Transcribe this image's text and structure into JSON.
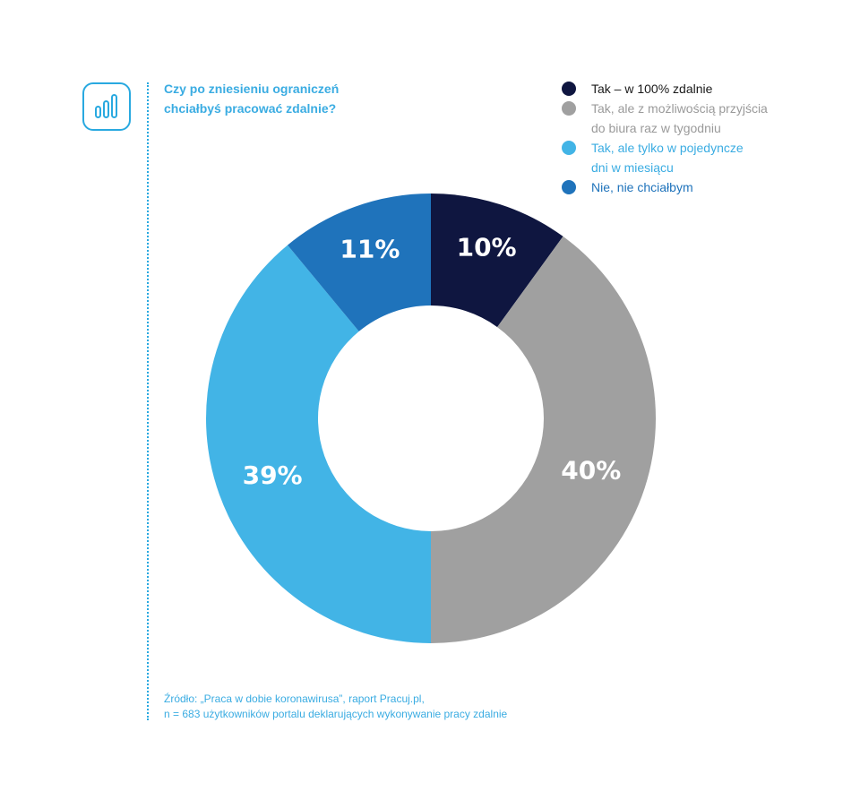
{
  "header": {
    "title_line1": "Czy po zniesieniu ograniczeń",
    "title_line2": "chciałbyś pracować zdalnie?",
    "icon": "bar-chart-icon"
  },
  "chart_data": {
    "type": "pie",
    "donut": true,
    "title": "Czy po zniesieniu ograniczeń chciałbyś pracować zdalnie?",
    "legend_position": "top-right",
    "slices": [
      {
        "label_lines": [
          "Tak – w 100% zdalnie"
        ],
        "value": 10,
        "display": "10%",
        "color": "#0f1640",
        "text_color": "#1a1a1a"
      },
      {
        "label_lines": [
          "Tak, ale z możliwością przyjścia",
          "do biura raz w tygodniu"
        ],
        "value": 40,
        "display": "40%",
        "color": "#a0a0a0",
        "text_color": "#9a9a9a"
      },
      {
        "label_lines": [
          "Tak, ale tylko w pojedyncze",
          "dni w miesiącu"
        ],
        "value": 39,
        "display": "39%",
        "color": "#42b4e6",
        "text_color": "#3aace2"
      },
      {
        "label_lines": [
          "Nie, nie chciałbym"
        ],
        "value": 11,
        "display": "11%",
        "color": "#1f73bb",
        "text_color": "#1f73bb"
      }
    ]
  },
  "source": {
    "line1": "Źródło: „Praca w dobie koronawirusa”, raport Pracuj.pl,",
    "line2": "n = 683 użytkowników portalu deklarujących wykonywanie pracy zdalnie"
  }
}
